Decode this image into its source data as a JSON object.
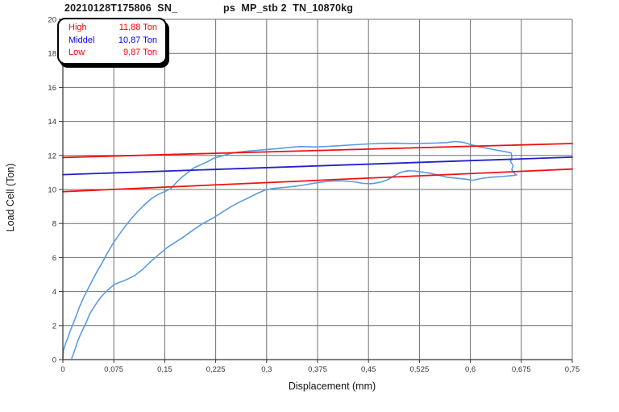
{
  "header": {
    "title_left": "20210128T175806  SN_",
    "title_right": "ps  MP_stb 2  TN_10870kg"
  },
  "chart_data": {
    "type": "line",
    "title": "20210128T175806 SN_   ps MP_stb 2 TN_10870kg",
    "xlabel": "Displacement (mm)",
    "ylabel": "Load Cell (Ton)",
    "xlim": [
      0,
      0.75
    ],
    "ylim": [
      0,
      20
    ],
    "grid": true,
    "x_ticks": {
      "values": [
        0,
        0.075,
        0.15,
        0.225,
        0.3,
        0.375,
        0.45,
        0.525,
        0.6,
        0.675,
        0.75
      ],
      "labels": [
        "0",
        "0,075",
        "0,15",
        "0,225",
        "0,3",
        "0,375",
        "0,45",
        "0,525",
        "0,6",
        "0,675",
        "0,75"
      ]
    },
    "y_ticks": {
      "values": [
        0,
        2,
        4,
        6,
        8,
        10,
        12,
        14,
        16,
        18,
        20
      ],
      "labels": [
        "0",
        "2",
        "4",
        "6",
        "8",
        "10",
        "12",
        "14",
        "16",
        "18",
        "20"
      ]
    },
    "legend": {
      "position": "top-left",
      "items": [
        {
          "label": "High",
          "value": "11,88 Ton",
          "color": "#ff0000"
        },
        {
          "label": "Middel",
          "value": "10,87 Ton",
          "color": "#0000ee"
        },
        {
          "label": "Low",
          "value": "9,87 Ton",
          "color": "#ff0000"
        }
      ]
    },
    "colors": {
      "grid": "#6f6f6f",
      "axis": "#333333",
      "tick_text": "#333333",
      "label_text": "#111111"
    },
    "series": [
      {
        "name": "load-displacement-measurement",
        "color": "#5b9be0",
        "width": 1.6,
        "points": [
          [
            0.0,
            0.08
          ],
          [
            0.001,
            0.55
          ],
          [
            0.004,
            0.95
          ],
          [
            0.008,
            1.35
          ],
          [
            0.012,
            1.8
          ],
          [
            0.015,
            2.1
          ],
          [
            0.019,
            2.5
          ],
          [
            0.024,
            3.05
          ],
          [
            0.03,
            3.6
          ],
          [
            0.035,
            4.0
          ],
          [
            0.042,
            4.55
          ],
          [
            0.05,
            5.15
          ],
          [
            0.058,
            5.7
          ],
          [
            0.066,
            6.3
          ],
          [
            0.075,
            6.9
          ],
          [
            0.083,
            7.35
          ],
          [
            0.091,
            7.8
          ],
          [
            0.1,
            8.25
          ],
          [
            0.11,
            8.7
          ],
          [
            0.12,
            9.1
          ],
          [
            0.13,
            9.45
          ],
          [
            0.14,
            9.7
          ],
          [
            0.15,
            9.88
          ],
          [
            0.159,
            10.05
          ],
          [
            0.168,
            10.45
          ],
          [
            0.176,
            10.75
          ],
          [
            0.184,
            11.0
          ],
          [
            0.192,
            11.25
          ],
          [
            0.2,
            11.4
          ],
          [
            0.207,
            11.52
          ],
          [
            0.215,
            11.68
          ],
          [
            0.223,
            11.85
          ],
          [
            0.23,
            11.93
          ],
          [
            0.236,
            12.0
          ],
          [
            0.245,
            12.1
          ],
          [
            0.255,
            12.18
          ],
          [
            0.27,
            12.25
          ],
          [
            0.285,
            12.3
          ],
          [
            0.3,
            12.35
          ],
          [
            0.315,
            12.4
          ],
          [
            0.33,
            12.46
          ],
          [
            0.35,
            12.52
          ],
          [
            0.37,
            12.5
          ],
          [
            0.39,
            12.53
          ],
          [
            0.41,
            12.58
          ],
          [
            0.43,
            12.63
          ],
          [
            0.45,
            12.68
          ],
          [
            0.47,
            12.71
          ],
          [
            0.49,
            12.72
          ],
          [
            0.51,
            12.69
          ],
          [
            0.53,
            12.71
          ],
          [
            0.55,
            12.73
          ],
          [
            0.565,
            12.76
          ],
          [
            0.578,
            12.82
          ],
          [
            0.59,
            12.77
          ],
          [
            0.602,
            12.62
          ],
          [
            0.615,
            12.5
          ],
          [
            0.628,
            12.4
          ],
          [
            0.64,
            12.3
          ],
          [
            0.652,
            12.22
          ],
          [
            0.66,
            12.15
          ],
          [
            0.661,
            11.9
          ],
          [
            0.659,
            11.65
          ],
          [
            0.663,
            11.4
          ],
          [
            0.661,
            11.15
          ],
          [
            0.665,
            10.95
          ],
          [
            0.668,
            10.85
          ],
          [
            0.658,
            10.8
          ],
          [
            0.645,
            10.76
          ],
          [
            0.63,
            10.72
          ],
          [
            0.615,
            10.64
          ],
          [
            0.604,
            10.54
          ],
          [
            0.594,
            10.6
          ],
          [
            0.58,
            10.66
          ],
          [
            0.566,
            10.72
          ],
          [
            0.552,
            10.85
          ],
          [
            0.54,
            10.96
          ],
          [
            0.528,
            11.03
          ],
          [
            0.517,
            11.09
          ],
          [
            0.507,
            11.1
          ],
          [
            0.497,
            11.0
          ],
          [
            0.487,
            10.78
          ],
          [
            0.477,
            10.55
          ],
          [
            0.467,
            10.42
          ],
          [
            0.455,
            10.34
          ],
          [
            0.442,
            10.36
          ],
          [
            0.428,
            10.45
          ],
          [
            0.414,
            10.5
          ],
          [
            0.4,
            10.5
          ],
          [
            0.385,
            10.45
          ],
          [
            0.37,
            10.37
          ],
          [
            0.355,
            10.26
          ],
          [
            0.34,
            10.18
          ],
          [
            0.325,
            10.12
          ],
          [
            0.31,
            10.06
          ],
          [
            0.298,
            9.97
          ],
          [
            0.287,
            9.78
          ],
          [
            0.274,
            9.52
          ],
          [
            0.261,
            9.28
          ],
          [
            0.248,
            9.0
          ],
          [
            0.234,
            8.65
          ],
          [
            0.22,
            8.3
          ],
          [
            0.206,
            8.0
          ],
          [
            0.192,
            7.62
          ],
          [
            0.178,
            7.22
          ],
          [
            0.165,
            6.88
          ],
          [
            0.154,
            6.6
          ],
          [
            0.142,
            6.2
          ],
          [
            0.13,
            5.78
          ],
          [
            0.118,
            5.32
          ],
          [
            0.106,
            4.95
          ],
          [
            0.094,
            4.7
          ],
          [
            0.084,
            4.55
          ],
          [
            0.075,
            4.4
          ],
          [
            0.065,
            4.05
          ],
          [
            0.056,
            3.68
          ],
          [
            0.048,
            3.22
          ],
          [
            0.04,
            2.72
          ],
          [
            0.034,
            2.15
          ],
          [
            0.03,
            1.82
          ],
          [
            0.026,
            1.48
          ],
          [
            0.022,
            1.1
          ],
          [
            0.018,
            0.62
          ],
          [
            0.015,
            0.28
          ],
          [
            0.013,
            0.08
          ]
        ]
      },
      {
        "name": "high-limit-line",
        "color": "#ee1111",
        "width": 1.8,
        "points": [
          [
            0,
            11.88
          ],
          [
            0.75,
            12.7
          ]
        ]
      },
      {
        "name": "middel-fit-line",
        "color": "#2222cc",
        "width": 1.8,
        "points": [
          [
            0,
            10.87
          ],
          [
            0.75,
            11.9
          ]
        ]
      },
      {
        "name": "low-limit-line",
        "color": "#ee1111",
        "width": 1.8,
        "points": [
          [
            0,
            9.87
          ],
          [
            0.75,
            11.2
          ]
        ]
      }
    ]
  }
}
